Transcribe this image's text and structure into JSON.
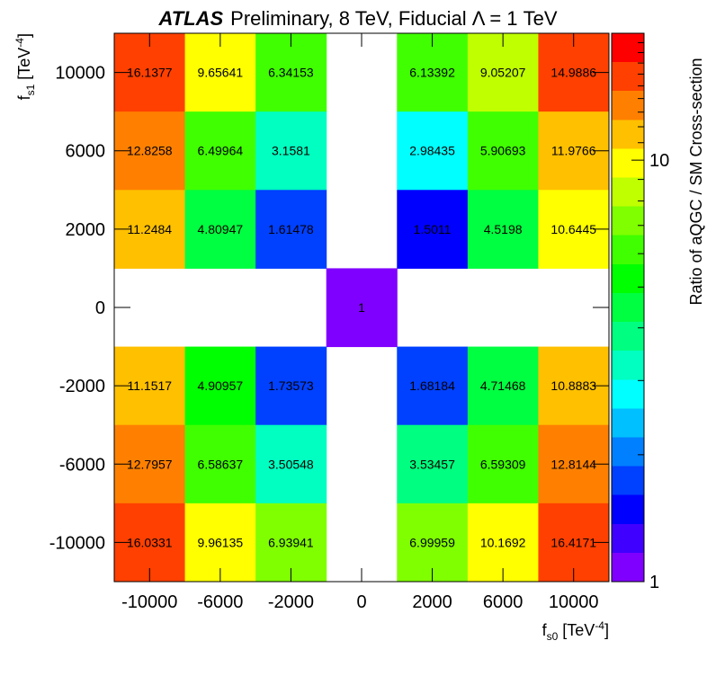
{
  "header": {
    "brand": "ATLAS",
    "subtitle": "Preliminary, 8 TeV, Fiducial Λ = 1 TeV"
  },
  "chart_data": {
    "type": "heatmap",
    "x_categories": [
      "-10000",
      "-6000",
      "-2000",
      "0",
      "2000",
      "6000",
      "10000"
    ],
    "y_categories": [
      "10000",
      "6000",
      "2000",
      "0",
      "-2000",
      "-6000",
      "-10000"
    ],
    "xlabel": {
      "base": "f",
      "sub": "s0",
      "unit_open": " [TeV",
      "sup": "-4",
      "unit_close": "]"
    },
    "ylabel": {
      "base": "f",
      "sub": "s1",
      "unit_open": " [TeV",
      "sup": "-4",
      "unit_close": "]"
    },
    "values": [
      [
        "16.1377",
        "9.65641",
        "6.34153",
        null,
        "6.13392",
        "9.05207",
        "14.9886"
      ],
      [
        "12.8258",
        "6.49964",
        "3.1581",
        null,
        "2.98435",
        "5.90693",
        "11.9766"
      ],
      [
        "11.2484",
        "4.80947",
        "1.61478",
        null,
        "1.5011",
        "4.5198",
        "10.6445"
      ],
      [
        null,
        null,
        null,
        "1",
        null,
        null,
        null
      ],
      [
        "11.1517",
        "4.90957",
        "1.73573",
        null,
        "1.68184",
        "4.71468",
        "10.8883"
      ],
      [
        "12.7957",
        "6.58637",
        "3.50548",
        null,
        "3.53457",
        "6.59309",
        "12.8144"
      ],
      [
        "16.0331",
        "9.96135",
        "6.93941",
        null,
        "6.99959",
        "10.1692",
        "16.4171"
      ]
    ],
    "colorbar": {
      "label": "Ratio of aQGC / SM Cross-section",
      "scale": "log",
      "range": [
        1,
        20
      ],
      "tick_labels": [
        "1",
        "10"
      ]
    },
    "palette": [
      "#8000ff",
      "#4000ff",
      "#0000ff",
      "#0040ff",
      "#0080ff",
      "#00c0ff",
      "#00ffff",
      "#00ffc0",
      "#00ff80",
      "#00ff40",
      "#00ff00",
      "#40ff00",
      "#80ff00",
      "#c0ff00",
      "#ffff00",
      "#ffc000",
      "#ff8000",
      "#ff4000",
      "#ff0000"
    ]
  }
}
